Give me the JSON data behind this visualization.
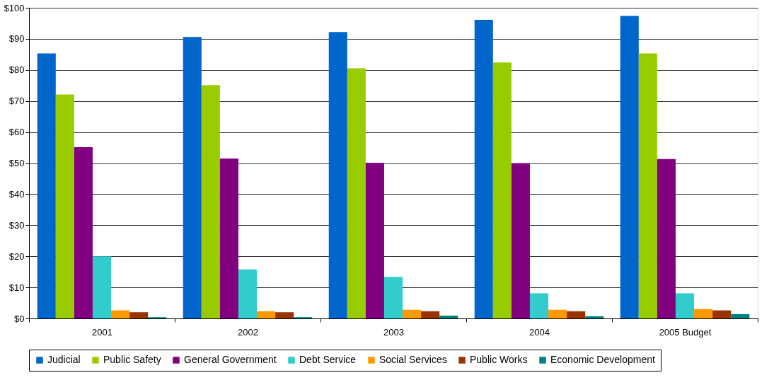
{
  "chart_data": {
    "type": "bar",
    "categories": [
      "2001",
      "2002",
      "2003",
      "2004",
      "2005 Budget"
    ],
    "series": [
      {
        "name": "Judicial",
        "color": "#0066cc",
        "values": [
          85.3,
          90.6,
          92.2,
          96.1,
          97.4
        ]
      },
      {
        "name": "Public Safety",
        "color": "#99cc00",
        "values": [
          72.1,
          75.1,
          80.5,
          82.4,
          85.3
        ]
      },
      {
        "name": "General Government",
        "color": "#800080",
        "values": [
          55.1,
          51.5,
          50.1,
          50.0,
          51.3
        ]
      },
      {
        "name": "Debt Service",
        "color": "#33cccc",
        "values": [
          20.0,
          15.8,
          13.4,
          8.1,
          8.1
        ]
      },
      {
        "name": "Social Services",
        "color": "#ff9900",
        "values": [
          2.6,
          2.3,
          2.8,
          2.8,
          3.0
        ]
      },
      {
        "name": "Public Works",
        "color": "#993300",
        "values": [
          2.0,
          2.0,
          2.3,
          2.3,
          2.6
        ]
      },
      {
        "name": "Economic Development",
        "color": "#008080",
        "values": [
          0.4,
          0.4,
          0.9,
          0.7,
          1.4
        ]
      }
    ],
    "ylim": [
      0,
      100
    ],
    "yticks": [
      {
        "value": 0,
        "label": "$0"
      },
      {
        "value": 10,
        "label": "$10"
      },
      {
        "value": 20,
        "label": "$20"
      },
      {
        "value": 30,
        "label": "$30"
      },
      {
        "value": 40,
        "label": "$40"
      },
      {
        "value": 50,
        "label": "$50"
      },
      {
        "value": 60,
        "label": "$60"
      },
      {
        "value": 70,
        "label": "$70"
      },
      {
        "value": 80,
        "label": "$80"
      },
      {
        "value": 90,
        "label": "$90"
      },
      {
        "value": 100,
        "label": "$100"
      }
    ],
    "grid": "y",
    "legend": "bottom"
  }
}
